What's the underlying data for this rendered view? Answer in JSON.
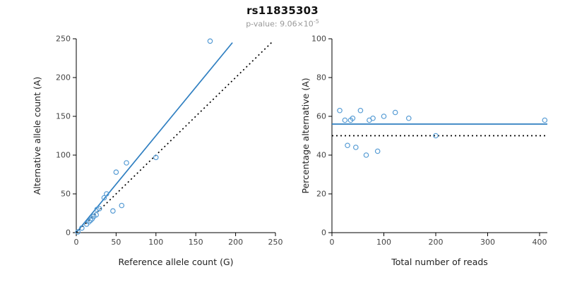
{
  "header": {
    "title": "rs11835303",
    "pvalue_label": "p-value: 9.06×10",
    "pvalue_exponent": "-5"
  },
  "style": {
    "point_color": "#559bd4",
    "fit_line_color": "#2f7fc1",
    "reference_line_color": "#000000",
    "axis_color": "#000000",
    "tick_label_color": "#444444",
    "axis_label_color": "#222222"
  },
  "chart_data": [
    {
      "type": "scatter",
      "title": "",
      "xlabel": "Reference allele count (G)",
      "ylabel": "Alternative allele count (A)",
      "xlim": [
        0,
        250
      ],
      "ylim": [
        0,
        250
      ],
      "xticks": [
        0,
        50,
        100,
        150,
        200,
        250
      ],
      "yticks": [
        0,
        50,
        100,
        150,
        200,
        250
      ],
      "grid": false,
      "points": [
        [
          2,
          1
        ],
        [
          7,
          6
        ],
        [
          13,
          11
        ],
        [
          16,
          14
        ],
        [
          18,
          16
        ],
        [
          20,
          18
        ],
        [
          22,
          21
        ],
        [
          25,
          23
        ],
        [
          26,
          30
        ],
        [
          29,
          31
        ],
        [
          35,
          45
        ],
        [
          38,
          50
        ],
        [
          46,
          28
        ],
        [
          50,
          78
        ],
        [
          57,
          35
        ],
        [
          63,
          90
        ],
        [
          100,
          97
        ],
        [
          168,
          247
        ]
      ],
      "lines": [
        {
          "name": "fit-line",
          "x": [
            0,
            196
          ],
          "y": [
            0,
            245
          ],
          "style": "solid"
        },
        {
          "name": "identity-line",
          "x": [
            0,
            245
          ],
          "y": [
            0,
            245
          ],
          "style": "dotted"
        }
      ]
    },
    {
      "type": "scatter",
      "title": "",
      "xlabel": "Total number of reads",
      "ylabel": "Percentage alternative (A)",
      "xlim": [
        0,
        415
      ],
      "ylim": [
        0,
        100
      ],
      "xticks": [
        0,
        100,
        200,
        300,
        400
      ],
      "yticks": [
        0,
        20,
        40,
        60,
        80,
        100
      ],
      "grid": false,
      "points": [
        [
          15,
          63
        ],
        [
          25,
          58
        ],
        [
          30,
          45
        ],
        [
          36,
          58
        ],
        [
          40,
          59
        ],
        [
          46,
          44
        ],
        [
          55,
          63
        ],
        [
          66,
          40
        ],
        [
          72,
          58
        ],
        [
          79,
          59
        ],
        [
          88,
          42
        ],
        [
          100,
          60
        ],
        [
          122,
          62
        ],
        [
          148,
          59
        ],
        [
          200,
          50
        ],
        [
          410,
          58
        ]
      ],
      "lines": [
        {
          "name": "fit-line",
          "x": [
            0,
            415
          ],
          "y": [
            56,
            56
          ],
          "style": "solid"
        },
        {
          "name": "expected-line",
          "x": [
            0,
            415
          ],
          "y": [
            50,
            50
          ],
          "style": "dotted"
        }
      ]
    }
  ]
}
